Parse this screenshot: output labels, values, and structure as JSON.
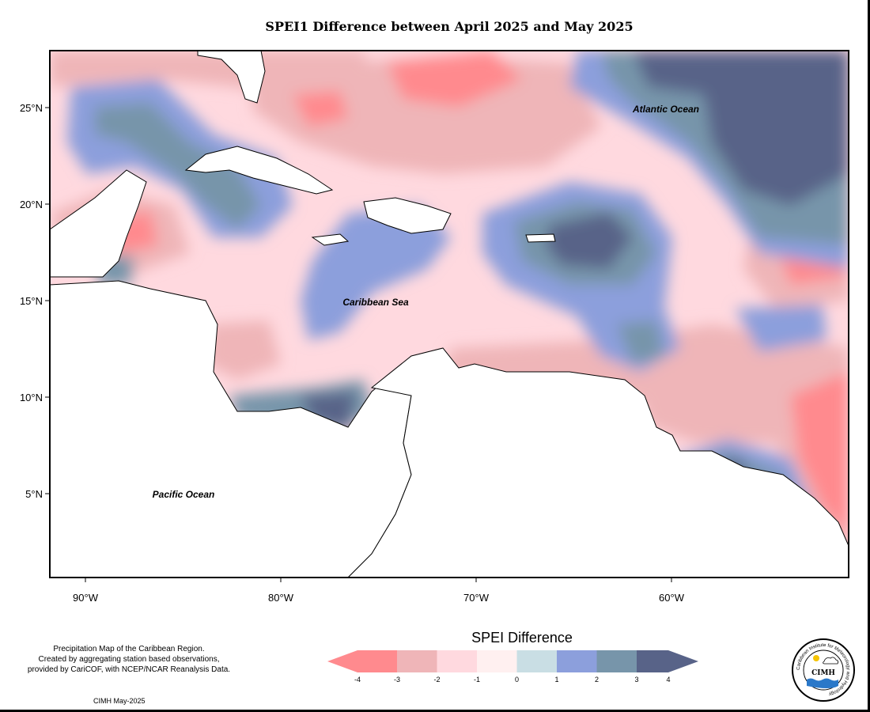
{
  "title": "SPEI1 Difference between April 2025 and May 2025",
  "axes": {
    "x_ticks": [
      {
        "value": -90,
        "label": "90°W"
      },
      {
        "value": -80,
        "label": "80°W"
      },
      {
        "value": -70,
        "label": "70°W"
      },
      {
        "value": -60,
        "label": "60°W"
      }
    ],
    "y_ticks": [
      {
        "value": 25,
        "label": "25°N"
      },
      {
        "value": 20,
        "label": "20°N"
      },
      {
        "value": 15,
        "label": "15°N"
      },
      {
        "value": 10,
        "label": "10°N"
      },
      {
        "value": 5,
        "label": "5°N"
      }
    ]
  },
  "labels": {
    "atlantic": "Atlantic Ocean",
    "caribbean": "Caribbean Sea",
    "pacific": "Pacific Ocean"
  },
  "legend": {
    "title": "SPEI Difference",
    "ticks": [
      "-4",
      "-3",
      "-2",
      "-1",
      "0",
      "1",
      "2",
      "3",
      "4"
    ],
    "colors": {
      "below_-3": "#ff8a8e",
      "-3_-2": "#efb5b8",
      "-2_-1": "#ffd9df",
      "-1_0": "#fff0f0",
      "0_1": "#c9dee4",
      "1_2": "#8c9fdc",
      "2_3": "#7795aa",
      "above_3": "#586388"
    }
  },
  "credits": [
    "Precipitation Map of the Caribbean Region.",
    "Created by aggregating station based observations,",
    "provided by CariCOF, with NCEP/NCAR Reanalysis Data."
  ],
  "stamp": "CIMH May-2025",
  "logo": {
    "name": "CIMH",
    "ring_text": "Caribbean Institute for Meteorology and Hydrology"
  }
}
